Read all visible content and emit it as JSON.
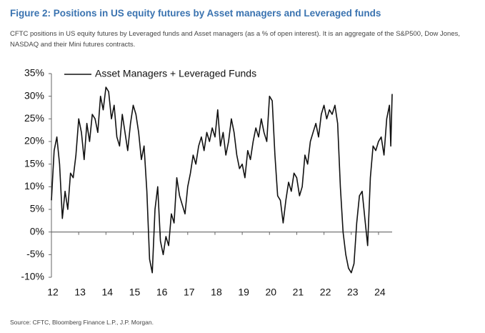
{
  "chart_data": {
    "type": "line",
    "title": "Figure 2: Positions in US equity futures by Asset managers and Leveraged funds",
    "subtitle": "CFTC positions in US equity futures by Leveraged funds and Asset managers (as a % of open interest). It is an aggregate of the S&P500, Dow Jones, NASDAQ and their Mini futures contracts.",
    "source": "Source: CFTC, Bloomberg Finance L.P., J.P. Morgan.",
    "x": [
      12.0,
      12.1,
      12.2,
      12.3,
      12.4,
      12.5,
      12.6,
      12.7,
      12.8,
      12.9,
      13.0,
      13.1,
      13.2,
      13.3,
      13.4,
      13.5,
      13.6,
      13.7,
      13.8,
      13.9,
      14.0,
      14.1,
      14.2,
      14.3,
      14.4,
      14.5,
      14.6,
      14.7,
      14.8,
      14.9,
      15.0,
      15.1,
      15.2,
      15.3,
      15.4,
      15.5,
      15.6,
      15.7,
      15.8,
      15.9,
      16.0,
      16.1,
      16.2,
      16.3,
      16.4,
      16.5,
      16.6,
      16.7,
      16.8,
      16.9,
      17.0,
      17.1,
      17.2,
      17.3,
      17.4,
      17.5,
      17.6,
      17.7,
      17.8,
      17.9,
      18.0,
      18.1,
      18.2,
      18.3,
      18.4,
      18.5,
      18.6,
      18.7,
      18.8,
      18.9,
      19.0,
      19.1,
      19.2,
      19.3,
      19.4,
      19.5,
      19.6,
      19.7,
      19.8,
      19.9,
      20.0,
      20.1,
      20.2,
      20.3,
      20.4,
      20.5,
      20.6,
      20.7,
      20.8,
      20.9,
      21.0,
      21.1,
      21.2,
      21.3,
      21.4,
      21.5,
      21.6,
      21.7,
      21.8,
      21.9,
      22.0,
      22.1,
      22.2,
      22.3,
      22.4,
      22.5,
      22.6,
      22.7,
      22.8,
      22.9,
      23.0,
      23.1,
      23.2,
      23.3,
      23.4,
      23.5,
      23.6,
      23.7,
      23.8,
      23.9,
      24.0,
      24.1,
      24.2,
      24.3,
      24.4,
      24.45,
      24.5
    ],
    "series": [
      {
        "name": "Asset Managers + Leveraged Funds",
        "color": "#111111",
        "values": [
          7,
          18,
          21,
          15,
          3,
          9,
          5,
          13,
          12,
          17,
          25,
          22,
          16,
          24,
          20,
          26,
          25,
          22,
          30,
          27,
          32,
          31,
          25,
          28,
          21,
          19,
          26,
          22,
          18,
          24,
          28,
          26,
          22,
          16,
          19,
          9,
          -6,
          -9,
          5,
          10,
          -2,
          -5,
          -1,
          -3,
          4,
          2,
          12,
          8,
          6,
          4,
          10,
          13,
          17,
          15,
          19,
          21,
          18,
          22,
          20,
          23,
          21,
          27,
          19,
          22,
          17,
          20,
          25,
          22,
          17,
          14,
          15,
          12,
          18,
          16,
          20,
          23,
          21,
          25,
          22,
          20,
          30,
          29,
          17,
          8,
          7,
          2,
          7,
          11,
          9,
          13,
          12,
          8,
          10,
          17,
          15,
          20,
          22,
          24,
          21,
          26,
          28,
          25,
          27,
          26,
          28,
          24,
          10,
          0,
          -5,
          -8,
          -9,
          -7,
          2,
          8,
          9,
          3,
          -3,
          12,
          19,
          18,
          20,
          21,
          17,
          25,
          28,
          19,
          30.5
        ]
      }
    ],
    "xlim": [
      12,
      24.5
    ],
    "xticks": [
      12,
      13,
      14,
      15,
      16,
      17,
      18,
      19,
      20,
      21,
      22,
      23,
      24
    ],
    "ylim": [
      -10,
      35
    ],
    "yticks": [
      {
        "value": -10,
        "label": "-10%"
      },
      {
        "value": -5,
        "label": "-5%"
      },
      {
        "value": 0,
        "label": "0%"
      },
      {
        "value": 5,
        "label": "5%"
      },
      {
        "value": 10,
        "label": "10%"
      },
      {
        "value": 15,
        "label": "15%"
      },
      {
        "value": 20,
        "label": "20%"
      },
      {
        "value": 25,
        "label": "25%"
      },
      {
        "value": 30,
        "label": "30%"
      },
      {
        "value": 35,
        "label": "35%"
      }
    ],
    "grid": false
  }
}
